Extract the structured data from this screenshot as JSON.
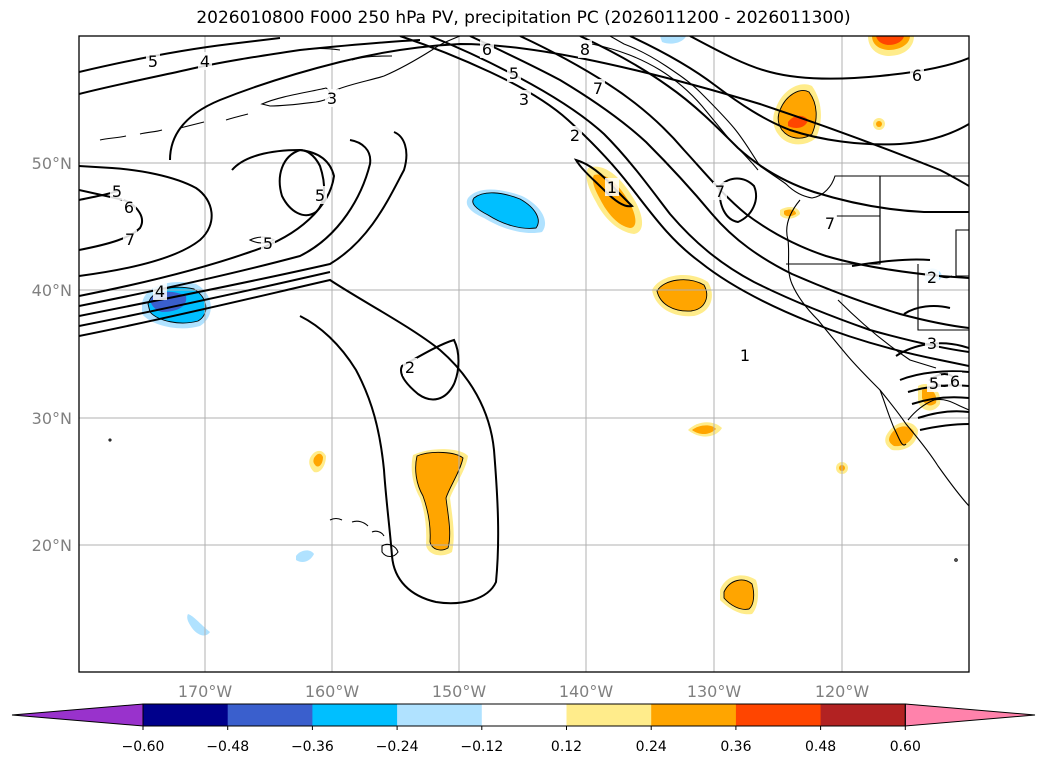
{
  "title": "2026010800 F000 250 hPa PV, precipitation PC (2026011200 - 2026011300)",
  "lon_ticks": [
    "170°W",
    "160°W",
    "150°W",
    "140°W",
    "130°W",
    "120°W"
  ],
  "lat_ticks": [
    "50°N",
    "40°N",
    "30°N",
    "20°N"
  ],
  "colorbar": {
    "colors": [
      "#9932cc",
      "#00008b",
      "#3a5fcd",
      "#00bfff",
      "#b0e2ff",
      "#ffffff",
      "#ffec8b",
      "#ffa500",
      "#ff4500",
      "#b22222",
      "#ff82ab"
    ],
    "labels": [
      "−0.60",
      "−0.48",
      "−0.36",
      "−0.24",
      "−0.12",
      "0.12",
      "0.24",
      "0.36",
      "0.48",
      "0.60"
    ]
  },
  "contour_labels": [
    "5",
    "4",
    "6",
    "5",
    "3",
    "2",
    "7",
    "8",
    "1",
    "7",
    "7",
    "6",
    "5",
    "6",
    "7",
    "5",
    "5",
    "4",
    "2",
    "1",
    "3",
    "3",
    "5",
    "6",
    "2"
  ]
}
